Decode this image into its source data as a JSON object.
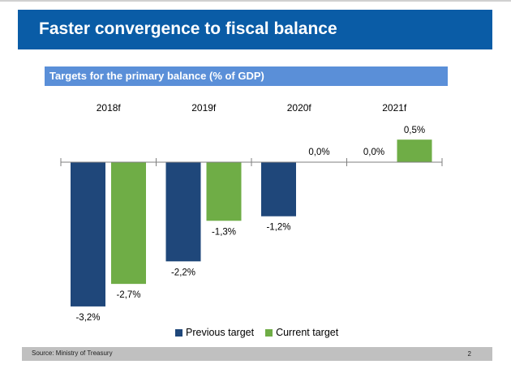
{
  "slide": {
    "title": "Faster convergence to fiscal balance",
    "subtitle": "Targets for the primary balance (% of GDP)",
    "source": "Source:  Ministry of Treasury",
    "page_number": "2",
    "colors": {
      "title_band": "#0a5ca6",
      "subtitle_band": "#5a8fd8",
      "footer_band": "#c0c0c0"
    }
  },
  "chart_data": {
    "type": "bar",
    "title": "Targets for the primary balance (% of GDP)",
    "xlabel": "",
    "ylabel": "% of GDP",
    "categories": [
      "2018f",
      "2019f",
      "2020f",
      "2021f"
    ],
    "category_axis_position": "top",
    "series": [
      {
        "name": "Previous target",
        "color": "#1f477a",
        "values": [
          -3.2,
          -2.2,
          -1.2,
          0.0
        ],
        "labels": [
          "-3,2%",
          "-2,2%",
          "-1,2%",
          "0,0%"
        ]
      },
      {
        "name": "Current target",
        "color": "#6fad46",
        "values": [
          -2.7,
          -1.3,
          0.0,
          0.5
        ],
        "labels": [
          "-2,7%",
          "-1,3%",
          "0,0%",
          "0,5%"
        ]
      }
    ],
    "ylim": [
      -3.6,
      0.9
    ],
    "grid": false,
    "legend_position": "bottom"
  }
}
